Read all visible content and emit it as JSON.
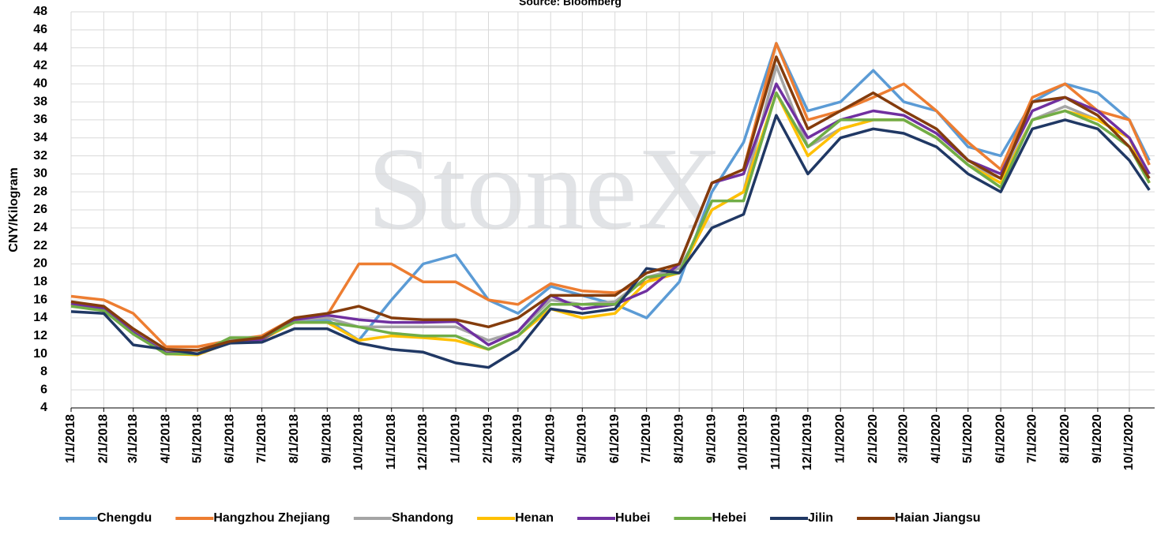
{
  "chart_data": {
    "type": "line",
    "title": "Source: Bloomberg",
    "watermark": "StoneX",
    "y_label": "CNY/Kilogram",
    "x": [
      "1/1/2018",
      "2/1/2018",
      "3/1/2018",
      "4/1/2018",
      "5/1/2018",
      "6/1/2018",
      "7/1/2018",
      "8/1/2018",
      "9/1/2018",
      "10/1/2018",
      "11/1/2018",
      "12/1/2018",
      "1/1/2019",
      "2/1/2019",
      "3/1/2019",
      "4/1/2019",
      "5/1/2019",
      "6/1/2019",
      "7/1/2019",
      "8/1/2019",
      "9/1/2019",
      "10/1/2019",
      "11/1/2019",
      "12/1/2019",
      "1/1/2020",
      "2/1/2020",
      "3/1/2020",
      "4/1/2020",
      "5/1/2020",
      "6/1/2020",
      "7/1/2020",
      "8/1/2020",
      "9/1/2020",
      "10/1/2020",
      "10/20/2020"
    ],
    "xlim": [
      "1/1/2018",
      "10/25/2020"
    ],
    "xticks": [
      "1/1/2018",
      "2/1/2018",
      "3/1/2018",
      "4/1/2018",
      "5/1/2018",
      "6/1/2018",
      "7/1/2018",
      "8/1/2018",
      "9/1/2018",
      "10/1/2018",
      "11/1/2018",
      "12/1/2018",
      "1/1/2019",
      "2/1/2019",
      "3/1/2019",
      "4/1/2019",
      "5/1/2019",
      "6/1/2019",
      "7/1/2019",
      "8/1/2019",
      "9/1/2019",
      "10/1/2019",
      "11/1/2019",
      "12/1/2019",
      "1/1/2020",
      "2/1/2020",
      "3/1/2020",
      "4/1/2020",
      "5/1/2020",
      "6/1/2020",
      "7/1/2020",
      "8/1/2020",
      "9/1/2020",
      "10/1/2020"
    ],
    "ylim": [
      4,
      48
    ],
    "yticks": [
      4,
      6,
      8,
      10,
      12,
      14,
      16,
      18,
      20,
      22,
      24,
      26,
      28,
      30,
      32,
      34,
      36,
      38,
      40,
      42,
      44,
      46,
      48
    ],
    "grid": true,
    "legend": "bottom",
    "series": [
      {
        "name": "Chengdu",
        "color": "#5b9bd5",
        "values": [
          15.5,
          15,
          12.5,
          10,
          10,
          11.5,
          11.8,
          13.5,
          13.8,
          11.5,
          16,
          20,
          21,
          16,
          14.5,
          17.5,
          16.5,
          15.5,
          14,
          18,
          28,
          33.5,
          44.5,
          37,
          38,
          41.5,
          38,
          37,
          33,
          32,
          38,
          40,
          39,
          36,
          31.5
        ]
      },
      {
        "name": "Hangzhou Zhejiang",
        "color": "#ed7d31",
        "values": [
          16.4,
          16,
          14.5,
          10.8,
          10.8,
          11.5,
          12,
          14,
          14.3,
          20,
          20,
          18,
          18,
          16,
          15.5,
          17.8,
          17,
          16.8,
          18,
          20,
          29,
          30.5,
          44.5,
          36,
          37,
          38.5,
          40,
          37,
          33.5,
          30.5,
          38.5,
          40,
          37,
          36,
          31
        ]
      },
      {
        "name": "Shandong",
        "color": "#a5a5a5",
        "values": [
          15.8,
          15,
          12.5,
          10.2,
          10,
          11.5,
          11.8,
          13.8,
          14,
          13,
          13,
          13,
          13,
          11.5,
          12.5,
          16,
          15.5,
          15.8,
          18.5,
          19.5,
          26,
          28,
          42,
          33,
          35,
          36,
          36,
          34,
          31,
          29.5,
          36,
          37.5,
          36,
          34,
          30
        ]
      },
      {
        "name": "Henan",
        "color": "#ffc000",
        "values": [
          15.5,
          14.8,
          12.3,
          10,
          9.9,
          11.3,
          11.6,
          13.5,
          13.5,
          11.5,
          12,
          11.8,
          11.5,
          10.5,
          12,
          15,
          14,
          14.5,
          18,
          19,
          26,
          28,
          39,
          32,
          35,
          36,
          36,
          34,
          31,
          29,
          36,
          37,
          36,
          34,
          29
        ]
      },
      {
        "name": "Hubei",
        "color": "#7030a0",
        "values": [
          15.6,
          15,
          12.4,
          10.1,
          10,
          11.3,
          11.6,
          13.8,
          14.3,
          13.8,
          13.5,
          13.5,
          13.6,
          11,
          12.5,
          16.5,
          15,
          15.5,
          17,
          20,
          29,
          30,
          40,
          34,
          36,
          37,
          36.5,
          34.5,
          31.5,
          30,
          37,
          38.5,
          37,
          34,
          30
        ]
      },
      {
        "name": "Hebei",
        "color": "#70ad47",
        "values": [
          15.3,
          14.8,
          12.2,
          10,
          10,
          11.8,
          11.8,
          13.5,
          13.5,
          13,
          12.3,
          12,
          12,
          10.5,
          12,
          15.5,
          15.5,
          15.5,
          18.5,
          19,
          27,
          27,
          39,
          33,
          36,
          36,
          36,
          34,
          31,
          28.5,
          36,
          37,
          35.5,
          33,
          29
        ]
      },
      {
        "name": "Jilin",
        "color": "#203864",
        "values": [
          14.7,
          14.5,
          11,
          10.5,
          10,
          11.2,
          11.3,
          12.8,
          12.8,
          11.2,
          10.5,
          10.2,
          9,
          8.5,
          10.5,
          15,
          14.5,
          15,
          19.5,
          19,
          24,
          25.5,
          36.5,
          30,
          34,
          35,
          34.5,
          33,
          30,
          28,
          35,
          36,
          35,
          31.5,
          28.2
        ]
      },
      {
        "name": "Haian Jiangsu",
        "color": "#843c0c",
        "values": [
          15.8,
          15.3,
          12.8,
          10.5,
          10.4,
          11.4,
          11.8,
          14,
          14.5,
          15.3,
          14,
          13.8,
          13.8,
          13,
          14,
          16.5,
          16.5,
          16.5,
          19,
          20,
          29,
          30.5,
          43,
          35,
          37,
          39,
          37,
          35,
          31.5,
          29.5,
          38,
          38.5,
          36.5,
          33,
          29.5
        ]
      }
    ]
  }
}
